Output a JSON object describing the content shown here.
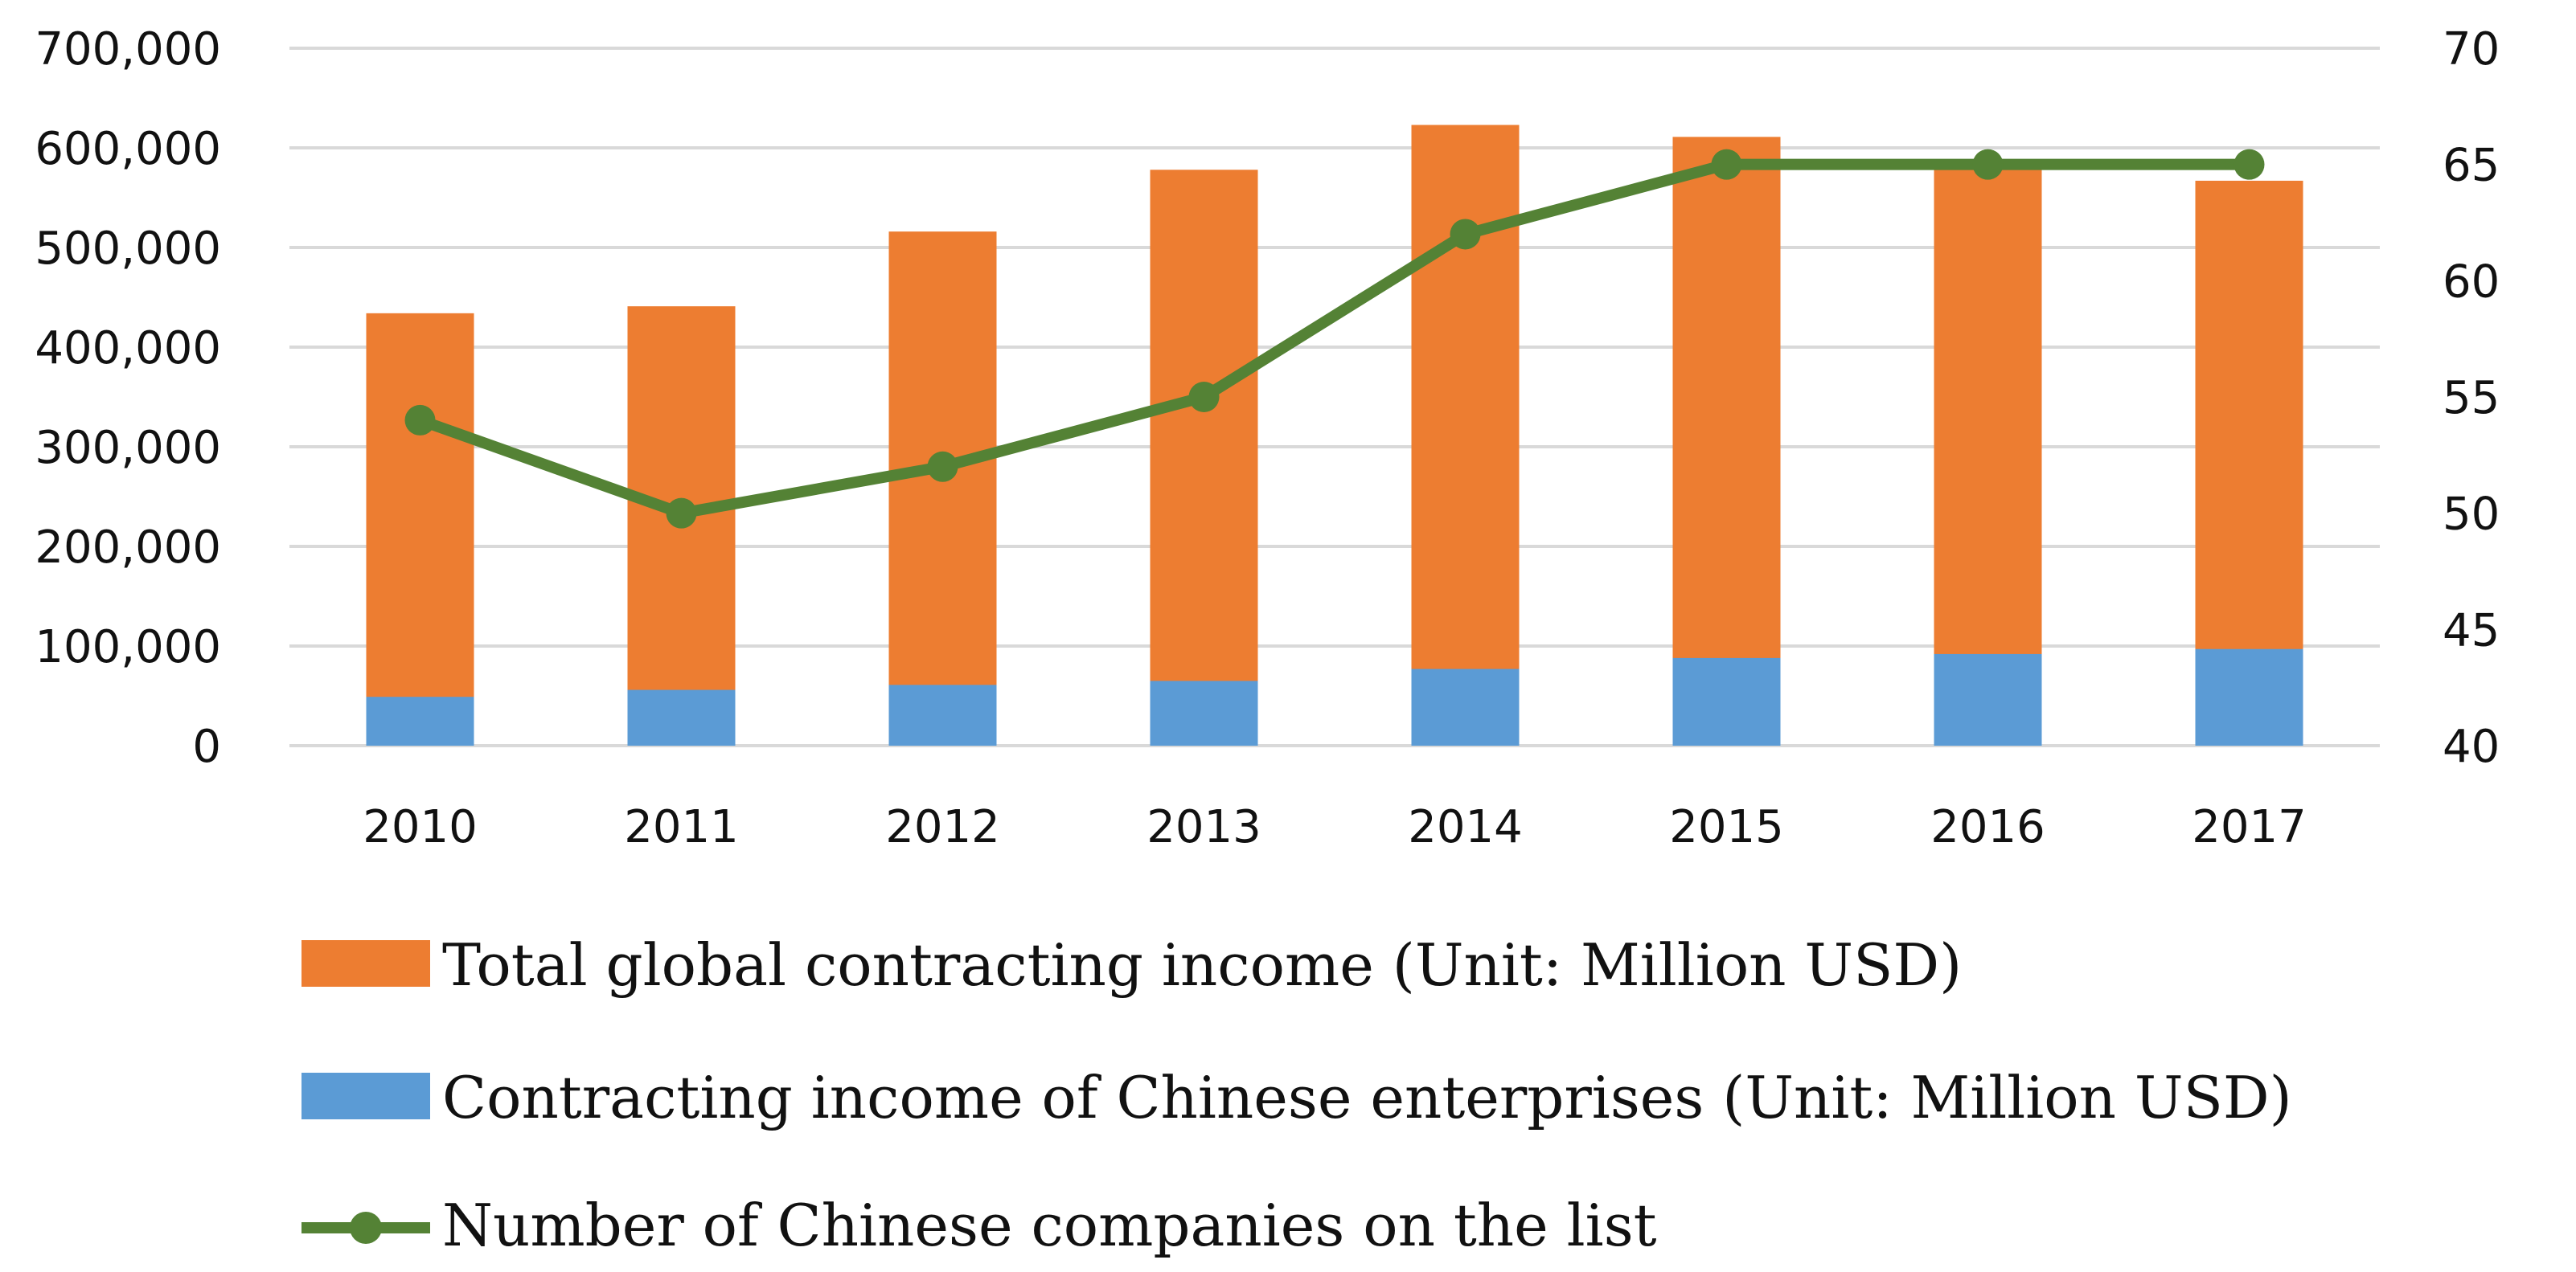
{
  "chart_data": {
    "type": "bar",
    "title": "",
    "categories": [
      "2010",
      "2011",
      "2012",
      "2013",
      "2014",
      "2015",
      "2016",
      "2017"
    ],
    "series": [
      {
        "name": "Total global contracting income (Unit: Million USD)",
        "kind": "bar",
        "axis": "left",
        "color": "#ed7d31",
        "values": [
          434000,
          441000,
          516000,
          578000,
          623000,
          611000,
          580000,
          567000
        ]
      },
      {
        "name": "Contracting income of Chinese enterprises (Unit: Million USD)",
        "kind": "bar",
        "axis": "left",
        "color": "#5b9bd5",
        "values": [
          49000,
          56000,
          61000,
          65000,
          77000,
          88000,
          92000,
          97000
        ]
      },
      {
        "name": "Number of Chinese companies on the list",
        "kind": "line",
        "axis": "right",
        "color": "#548235",
        "values": [
          54,
          50,
          52,
          55,
          62,
          65,
          65,
          65
        ]
      }
    ],
    "y_left": {
      "ylim": [
        0,
        700000
      ],
      "ticks": [
        0,
        100000,
        200000,
        300000,
        400000,
        500000,
        600000,
        700000
      ],
      "tick_labels": [
        "0",
        "100,000",
        "200,000",
        "300,000",
        "400,000",
        "500,000",
        "600,000",
        "700,000"
      ]
    },
    "y_right": {
      "ylim": [
        40,
        70
      ],
      "ticks": [
        40,
        45,
        50,
        55,
        60,
        65,
        70
      ],
      "tick_labels": [
        "40",
        "45",
        "50",
        "55",
        "60",
        "65",
        "70"
      ]
    },
    "grid": true,
    "legend_position": "bottom"
  }
}
